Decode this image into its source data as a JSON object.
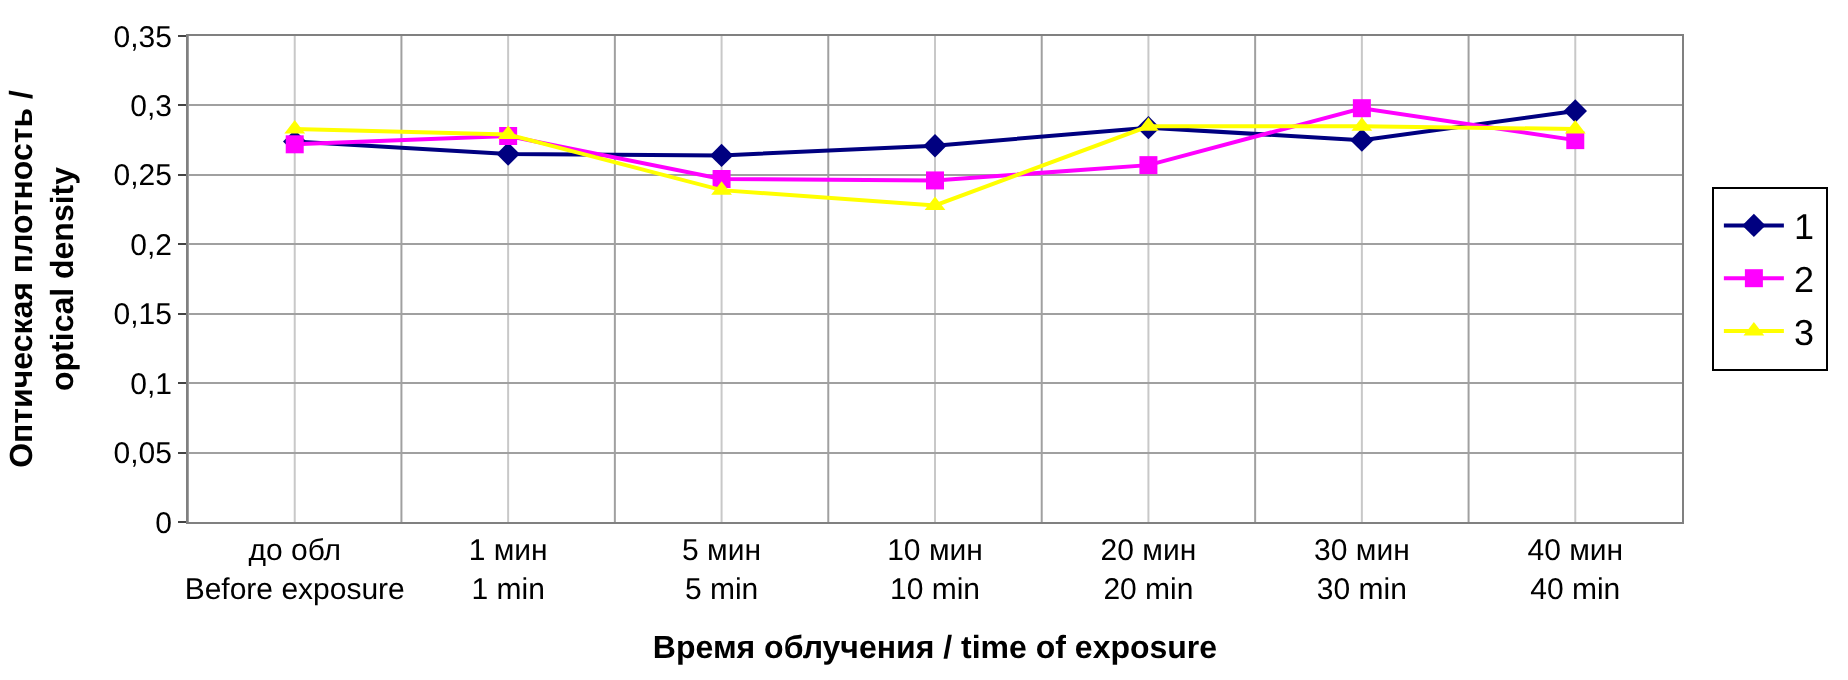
{
  "chart_data": {
    "type": "line",
    "xlabel": "Время облучения / time of exposure",
    "ylabel": "Оптическая плотность /\noptical density",
    "categories": [
      "до обл\nBefore exposure",
      "1 мин\n1 min",
      "5 мин\n5 min",
      "10 мин\n10 min",
      "20 мин\n20 min",
      "30 мин\n30 min",
      "40 мин\n40 min"
    ],
    "series": [
      {
        "name": "1",
        "color": "#000080",
        "marker": "diamond",
        "values": [
          0.274,
          0.265,
          0.264,
          0.271,
          0.284,
          0.275,
          0.296
        ]
      },
      {
        "name": "2",
        "color": "#ff00ff",
        "marker": "square",
        "values": [
          0.272,
          0.278,
          0.247,
          0.246,
          0.257,
          0.298,
          0.275
        ]
      },
      {
        "name": "3",
        "color": "#ffff00",
        "marker": "triangle",
        "values": [
          0.283,
          0.279,
          0.239,
          0.228,
          0.285,
          0.285,
          0.283
        ]
      }
    ],
    "ylim": [
      0,
      0.35
    ],
    "yticks": [
      0,
      {
        "value": 0.05,
        "label": "0,05"
      },
      {
        "value": 0.1,
        "label": "0,1"
      },
      {
        "value": 0.15,
        "label": "0,15"
      },
      {
        "value": 0.2,
        "label": "0,2"
      },
      {
        "value": 0.25,
        "label": "0,25"
      },
      {
        "value": 0.3,
        "label": "0,3"
      },
      {
        "value": 0.35,
        "label": "0,35"
      }
    ],
    "grid": true,
    "legend": "right",
    "line_style": "solid"
  }
}
